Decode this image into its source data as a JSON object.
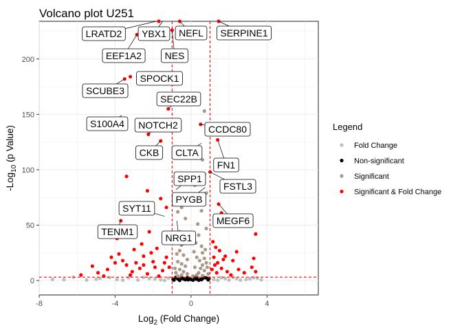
{
  "chart_data": {
    "type": "scatter",
    "title": "Volcano plot U251",
    "xlabel_main": "Log",
    "xlabel_sub": "2",
    "xlabel_rest": " (Fold Change)",
    "ylabel_main": "-Log",
    "ylabel_sub": "10",
    "ylabel_rest": " (p Value)",
    "xlim": [
      -8,
      6.7
    ],
    "ylim": [
      -13,
      234
    ],
    "x_ticks": [
      -8,
      -4,
      0,
      4
    ],
    "y_ticks": [
      0,
      50,
      100,
      150,
      200
    ],
    "x_tick_labels": [
      "-8",
      "-4",
      "0",
      "4"
    ],
    "y_tick_labels": [
      "0",
      "50",
      "100",
      "150",
      "200"
    ],
    "thresholds": {
      "fold_change_x": [
        -1,
        1
      ],
      "p_value_y": 3
    },
    "grid": true,
    "legend": {
      "title": "Legend",
      "position": "right",
      "entries": [
        {
          "label": "Fold Change",
          "color": "#bebebe"
        },
        {
          "label": "Non-significant",
          "color": "#000000"
        },
        {
          "label": "Significant",
          "color": "#a89888"
        },
        {
          "label": "Significant & Fold Change",
          "color": "#ff0000"
        }
      ]
    },
    "colors": {
      "line": "#ff0000",
      "panel": "#ffffff",
      "grid": "#ebebeb"
    },
    "labeled_points": [
      {
        "gene": "LRATD2",
        "x": -1.85,
        "y": 234
      },
      {
        "gene": "YBX1",
        "x": -1.5,
        "y": 234
      },
      {
        "gene": "NEFL",
        "x": -0.6,
        "y": 234
      },
      {
        "gene": "SERPINE1",
        "x": 1.45,
        "y": 234
      },
      {
        "gene": "EEF1A2",
        "x": -2.85,
        "y": 222
      },
      {
        "gene": "NES",
        "x": -1.0,
        "y": 226
      },
      {
        "gene": "SPOCK1",
        "x": -2.9,
        "y": 184
      },
      {
        "gene": "SCUBE3",
        "x": -3.5,
        "y": 182
      },
      {
        "gene": "SEC22B",
        "x": -1.2,
        "y": 155
      },
      {
        "gene": "S100A4",
        "x": -3.65,
        "y": 149
      },
      {
        "gene": "NOTCH2",
        "x": -2.25,
        "y": 132
      },
      {
        "gene": "CCDC80",
        "x": 0.5,
        "y": 141
      },
      {
        "gene": "CKB",
        "x": -1.6,
        "y": 126
      },
      {
        "gene": "CLTA",
        "x": 0.55,
        "y": 124
      },
      {
        "gene": "FN1",
        "x": 1.4,
        "y": 127
      },
      {
        "gene": "SPP1",
        "x": -0.8,
        "y": 82
      },
      {
        "gene": "FSTL3",
        "x": 1.0,
        "y": 98
      },
      {
        "gene": "PYGB",
        "x": 0.75,
        "y": 84
      },
      {
        "gene": "SYT11",
        "x": -1.4,
        "y": 58
      },
      {
        "gene": "MEGF6",
        "x": 1.45,
        "y": 69
      },
      {
        "gene": "TENM1",
        "x": -3.7,
        "y": 55
      },
      {
        "gene": "NRG1",
        "x": -0.75,
        "y": 54
      }
    ],
    "series": [
      {
        "name": "Significant & Fold Change",
        "points": [
          [
            -1.7,
            234
          ],
          [
            -1.0,
            226
          ],
          [
            -0.6,
            234
          ],
          [
            1.45,
            234
          ],
          [
            -2.85,
            222
          ],
          [
            -3.5,
            182
          ],
          [
            -3.2,
            184
          ],
          [
            -1.2,
            155
          ],
          [
            -2.25,
            132
          ],
          [
            0.5,
            141
          ],
          [
            -1.6,
            126
          ],
          [
            1.4,
            127
          ],
          [
            1.0,
            98
          ],
          [
            1.45,
            69
          ],
          [
            -3.9,
            38
          ],
          [
            -3.7,
            54
          ],
          [
            -4.6,
            40
          ],
          [
            -3.4,
            94
          ],
          [
            -2.3,
            81
          ],
          [
            -1.6,
            74
          ],
          [
            -2.8,
            64
          ],
          [
            1.3,
            56
          ],
          [
            1.6,
            61
          ],
          [
            -1.3,
            66
          ],
          [
            -2.2,
            44
          ],
          [
            -3.0,
            28
          ],
          [
            -2.5,
            22
          ],
          [
            -1.8,
            29
          ],
          [
            -4.2,
            21
          ],
          [
            -5.2,
            13
          ],
          [
            -4.4,
            10
          ],
          [
            -4.9,
            7
          ],
          [
            -5.8,
            5
          ],
          [
            -2.0,
            17
          ],
          [
            -1.4,
            16
          ],
          [
            -1.15,
            12
          ],
          [
            -2.7,
            11
          ],
          [
            -3.4,
            14
          ],
          [
            -3.1,
            8
          ],
          [
            -2.3,
            6
          ],
          [
            -1.7,
            4
          ],
          [
            -3.6,
            18
          ],
          [
            -2.1,
            25
          ],
          [
            -1.3,
            21
          ],
          [
            -1.1,
            34
          ],
          [
            1.15,
            35
          ],
          [
            1.3,
            30
          ],
          [
            1.5,
            27
          ],
          [
            1.8,
            22
          ],
          [
            2.2,
            18
          ],
          [
            1.25,
            14
          ],
          [
            1.6,
            11
          ],
          [
            1.9,
            8
          ],
          [
            2.5,
            10
          ],
          [
            2.8,
            7
          ],
          [
            3.2,
            12
          ],
          [
            3.4,
            42
          ],
          [
            3.3,
            20
          ],
          [
            2.1,
            5
          ],
          [
            1.4,
            16
          ],
          [
            1.2,
            21
          ],
          [
            1.1,
            10
          ],
          [
            2.4,
            26
          ],
          [
            1.7,
            19
          ],
          [
            1.35,
            7
          ],
          [
            3.4,
            8
          ],
          [
            -3.8,
            24
          ],
          [
            -4.0,
            16
          ],
          [
            -2.9,
            16
          ],
          [
            -2.5,
            14
          ],
          [
            -1.5,
            9
          ],
          [
            -1.9,
            12
          ],
          [
            -2.6,
            33
          ],
          [
            -3.2,
            5
          ],
          [
            -4.6,
            4
          ]
        ]
      },
      {
        "name": "Significant",
        "points": [
          [
            0.7,
            153
          ],
          [
            0.6,
            109
          ],
          [
            0.7,
            96
          ],
          [
            0.2,
            86
          ],
          [
            0.8,
            79
          ],
          [
            -0.4,
            76
          ],
          [
            0.3,
            73
          ],
          [
            -0.5,
            66
          ],
          [
            0.55,
            63
          ],
          [
            -0.7,
            62
          ],
          [
            -0.3,
            56
          ],
          [
            0.35,
            51
          ],
          [
            0.8,
            47
          ],
          [
            -0.6,
            44
          ],
          [
            0.4,
            41
          ],
          [
            -0.3,
            38
          ],
          [
            -0.5,
            32
          ],
          [
            0.55,
            31
          ],
          [
            0.25,
            34
          ],
          [
            -0.6,
            27
          ],
          [
            0.6,
            25
          ],
          [
            -0.4,
            23
          ],
          [
            0.3,
            21
          ],
          [
            0.7,
            20
          ],
          [
            -0.2,
            19
          ],
          [
            0.45,
            18
          ],
          [
            -0.7,
            17
          ],
          [
            0.8,
            16
          ],
          [
            -0.5,
            15
          ],
          [
            0.6,
            14
          ],
          [
            -0.3,
            13
          ],
          [
            0.2,
            12
          ],
          [
            0.5,
            11
          ],
          [
            -0.6,
            10
          ],
          [
            0.7,
            9
          ],
          [
            -0.4,
            8
          ],
          [
            0.4,
            7
          ],
          [
            -0.8,
            7
          ],
          [
            0.9,
            6
          ],
          [
            -0.2,
            6
          ],
          [
            0.3,
            5
          ],
          [
            -0.5,
            5
          ],
          [
            0.6,
            4.5
          ],
          [
            -0.7,
            4
          ],
          [
            0.1,
            4
          ],
          [
            0.85,
            12
          ],
          [
            -0.85,
            11
          ],
          [
            0.75,
            28
          ],
          [
            -0.75,
            24
          ],
          [
            0.15,
            26
          ]
        ]
      },
      {
        "name": "Fold Change",
        "points": [
          [
            -7.3,
            1
          ],
          [
            -6.2,
            3
          ],
          [
            -5.5,
            0.5
          ],
          [
            -4.8,
            2
          ],
          [
            -3.9,
            1
          ],
          [
            -3.3,
            2.5
          ],
          [
            -2.8,
            0.5
          ],
          [
            -2.2,
            1.8
          ],
          [
            -1.6,
            0.8
          ],
          [
            -1.2,
            2.2
          ],
          [
            1.2,
            1
          ],
          [
            1.6,
            2.5
          ],
          [
            2.0,
            0.5
          ],
          [
            2.4,
            1.8
          ],
          [
            2.9,
            1
          ],
          [
            3.3,
            2.6
          ],
          [
            3.7,
            0.6
          ],
          [
            -5.0,
            1.2
          ],
          [
            -3.6,
            0.4
          ],
          [
            -2.5,
            2.8
          ],
          [
            -1.9,
            1.3
          ],
          [
            1.4,
            0.3
          ],
          [
            2.2,
            2.9
          ],
          [
            3.1,
            1.5
          ],
          [
            -4.3,
            2.7
          ],
          [
            -6.7,
            0.8
          ],
          [
            -1.4,
            0.2
          ],
          [
            1.8,
            1.7
          ],
          [
            2.6,
            0.4
          ],
          [
            3.5,
            2.1
          ]
        ]
      },
      {
        "name": "Non-significant",
        "points": [
          [
            -0.9,
            0.5
          ],
          [
            -0.7,
            1.5
          ],
          [
            -0.5,
            2.5
          ],
          [
            -0.3,
            0.8
          ],
          [
            -0.1,
            1.9
          ],
          [
            0.1,
            0.4
          ],
          [
            0.3,
            2.2
          ],
          [
            0.5,
            1.1
          ],
          [
            0.7,
            2.7
          ],
          [
            0.9,
            0.6
          ],
          [
            -0.8,
            2.9
          ],
          [
            -0.6,
            0.2
          ],
          [
            -0.4,
            1.4
          ],
          [
            -0.2,
            2.6
          ],
          [
            0.0,
            1.0
          ],
          [
            0.2,
            2.8
          ],
          [
            0.4,
            0.3
          ],
          [
            0.6,
            1.7
          ],
          [
            0.8,
            2.4
          ],
          [
            -0.95,
            1.2
          ],
          [
            0.95,
            1.9
          ],
          [
            -0.15,
            0.7
          ],
          [
            0.25,
            1.3
          ],
          [
            -0.45,
            2.0
          ],
          [
            0.55,
            0.9
          ]
        ]
      }
    ]
  }
}
